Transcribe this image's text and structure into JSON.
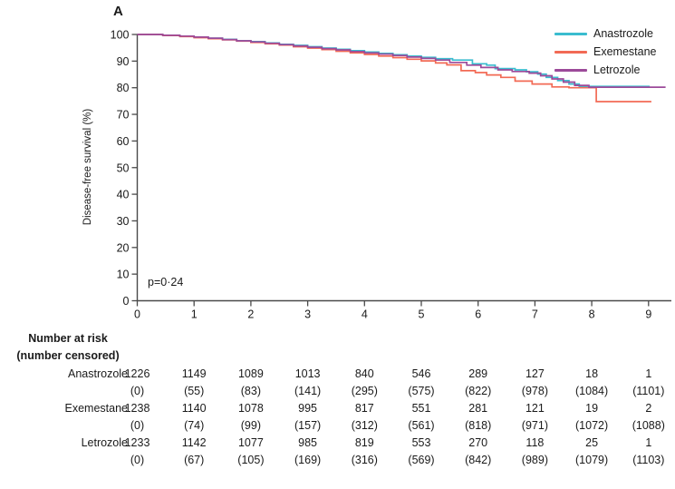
{
  "panel_label": "A",
  "p_value": "p=0·24",
  "legend": {
    "items": [
      {
        "label": "Anastrozole",
        "color": "#3abccf"
      },
      {
        "label": "Exemestane",
        "color": "#f26a55"
      },
      {
        "label": "Letrozole",
        "color": "#9c4a9a"
      }
    ]
  },
  "chart_data": {
    "type": "line",
    "subtype": "kaplan-meier-step",
    "title": "",
    "xlabel": "",
    "ylabel": "Disease-free survival (%)",
    "xlim": [
      0,
      9.4
    ],
    "ylim": [
      0,
      100
    ],
    "x_ticks": [
      0,
      1,
      2,
      3,
      4,
      5,
      6,
      7,
      8,
      9
    ],
    "y_ticks": [
      0,
      10,
      20,
      30,
      40,
      50,
      60,
      70,
      80,
      90,
      100
    ],
    "annotation": "p=0·24",
    "legend_position": "top-right",
    "grid": false,
    "series": [
      {
        "name": "Anastrozole",
        "color": "#3abccf",
        "points": [
          [
            0,
            100
          ],
          [
            0.45,
            99.7
          ],
          [
            0.75,
            99.4
          ],
          [
            1.0,
            99.0
          ],
          [
            1.25,
            98.6
          ],
          [
            1.5,
            98.2
          ],
          [
            1.75,
            97.7
          ],
          [
            2.0,
            97.3
          ],
          [
            2.25,
            96.8
          ],
          [
            2.5,
            96.3
          ],
          [
            2.75,
            95.9
          ],
          [
            3.0,
            95.4
          ],
          [
            3.25,
            94.9
          ],
          [
            3.5,
            94.4
          ],
          [
            3.75,
            93.9
          ],
          [
            4.0,
            93.4
          ],
          [
            4.25,
            92.9
          ],
          [
            4.5,
            92.4
          ],
          [
            4.75,
            91.9
          ],
          [
            5.0,
            91.4
          ],
          [
            5.25,
            90.9
          ],
          [
            5.55,
            90.4
          ],
          [
            5.9,
            89.0
          ],
          [
            6.15,
            88.5
          ],
          [
            6.3,
            87.2
          ],
          [
            6.65,
            86.7
          ],
          [
            6.85,
            86.0
          ],
          [
            7.05,
            85.1
          ],
          [
            7.2,
            83.9
          ],
          [
            7.4,
            82.7
          ],
          [
            7.6,
            81.4
          ],
          [
            7.78,
            80.5
          ],
          [
            9.02,
            80.5
          ]
        ]
      },
      {
        "name": "Exemestane",
        "color": "#f26a55",
        "points": [
          [
            0,
            100
          ],
          [
            0.45,
            99.6
          ],
          [
            0.75,
            99.2
          ],
          [
            1.0,
            98.8
          ],
          [
            1.25,
            98.4
          ],
          [
            1.5,
            98.0
          ],
          [
            1.75,
            97.5
          ],
          [
            2.0,
            97.0
          ],
          [
            2.25,
            96.5
          ],
          [
            2.5,
            96.0
          ],
          [
            2.75,
            95.4
          ],
          [
            3.0,
            94.9
          ],
          [
            3.25,
            94.3
          ],
          [
            3.5,
            93.7
          ],
          [
            3.75,
            93.1
          ],
          [
            4.0,
            92.5
          ],
          [
            4.25,
            91.9
          ],
          [
            4.5,
            91.3
          ],
          [
            4.75,
            90.7
          ],
          [
            5.0,
            90.1
          ],
          [
            5.25,
            89.3
          ],
          [
            5.45,
            88.6
          ],
          [
            5.7,
            86.4
          ],
          [
            5.95,
            85.7
          ],
          [
            6.15,
            84.8
          ],
          [
            6.4,
            83.9
          ],
          [
            6.65,
            82.5
          ],
          [
            6.95,
            81.4
          ],
          [
            7.3,
            80.3
          ],
          [
            7.6,
            80.0
          ],
          [
            8.08,
            74.8
          ],
          [
            9.05,
            74.8
          ]
        ]
      },
      {
        "name": "Letrozole",
        "color": "#9c4a9a",
        "points": [
          [
            0,
            100
          ],
          [
            0.45,
            99.7
          ],
          [
            0.75,
            99.4
          ],
          [
            1.0,
            99.0
          ],
          [
            1.25,
            98.6
          ],
          [
            1.5,
            98.1
          ],
          [
            1.75,
            97.6
          ],
          [
            2.0,
            97.2
          ],
          [
            2.25,
            96.7
          ],
          [
            2.5,
            96.2
          ],
          [
            2.75,
            95.7
          ],
          [
            3.0,
            95.2
          ],
          [
            3.25,
            94.7
          ],
          [
            3.5,
            94.2
          ],
          [
            3.75,
            93.6
          ],
          [
            4.0,
            93.1
          ],
          [
            4.25,
            92.6
          ],
          [
            4.5,
            92.1
          ],
          [
            4.75,
            91.5
          ],
          [
            5.0,
            91.0
          ],
          [
            5.25,
            90.4
          ],
          [
            5.5,
            89.5
          ],
          [
            5.8,
            88.5
          ],
          [
            6.05,
            87.6
          ],
          [
            6.35,
            86.7
          ],
          [
            6.6,
            86.1
          ],
          [
            6.9,
            85.5
          ],
          [
            7.1,
            84.5
          ],
          [
            7.3,
            83.3
          ],
          [
            7.5,
            82.1
          ],
          [
            7.7,
            80.9
          ],
          [
            7.95,
            80.2
          ],
          [
            9.3,
            80.2
          ]
        ]
      }
    ]
  },
  "risk_table": {
    "header_line1": "Number at risk",
    "header_line2": "(number censored)",
    "time_points": [
      0,
      1,
      2,
      3,
      4,
      5,
      6,
      7,
      8,
      9
    ],
    "rows": [
      {
        "label": "Anastrozole",
        "at_risk": [
          "1226",
          "1149",
          "1089",
          "1013",
          "840",
          "546",
          "289",
          "127",
          "18",
          "1"
        ],
        "censored": [
          "(0)",
          "(55)",
          "(83)",
          "(141)",
          "(295)",
          "(575)",
          "(822)",
          "(978)",
          "(1084)",
          "(1101)"
        ]
      },
      {
        "label": "Exemestane",
        "at_risk": [
          "1238",
          "1140",
          "1078",
          "995",
          "817",
          "551",
          "281",
          "121",
          "19",
          "2"
        ],
        "censored": [
          "(0)",
          "(74)",
          "(99)",
          "(157)",
          "(312)",
          "(561)",
          "(818)",
          "(971)",
          "(1072)",
          "(1088)"
        ]
      },
      {
        "label": "Letrozole",
        "at_risk": [
          "1233",
          "1142",
          "1077",
          "985",
          "819",
          "553",
          "270",
          "118",
          "25",
          "1"
        ],
        "censored": [
          "(0)",
          "(67)",
          "(105)",
          "(169)",
          "(316)",
          "(569)",
          "(842)",
          "(989)",
          "(1079)",
          "(1103)"
        ]
      }
    ]
  }
}
